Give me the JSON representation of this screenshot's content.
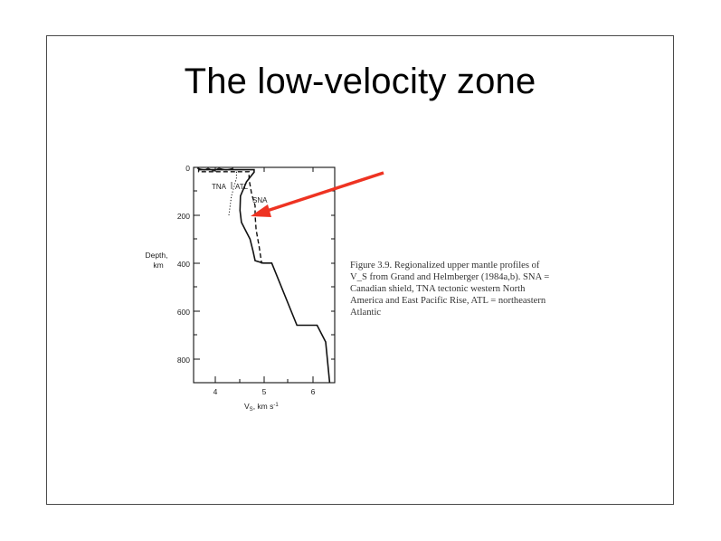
{
  "slide": {
    "title": "The low-velocity zone"
  },
  "figure": {
    "y_axis_label_line1": "Depth,",
    "y_axis_label_line2": "km",
    "x_axis_label": "V",
    "x_axis_label_sub": "S",
    "x_axis_label_unit": ", km s",
    "x_axis_label_sup": "-1",
    "y_ticks": [
      "0",
      "200",
      "400",
      "600",
      "800"
    ],
    "x_ticks": [
      "4",
      "5",
      "6"
    ],
    "profile_labels": {
      "tna": "TNA",
      "atl": "ATL",
      "sna": "SNA"
    },
    "caption_lines": [
      "Figure 3.9. Regionalized upper mantle profiles of",
      "V_S from Grand and Helmberger (1984a,b). SNA =",
      "Canadian shield, TNA      tectonic western North",
      "America and East Pacific Rise, ATL = northeastern",
      "Atlantic"
    ]
  },
  "chart_data": {
    "type": "line",
    "xlabel": "VS, km s-1",
    "ylabel": "Depth, km",
    "xlim": [
      3.5,
      6.3
    ],
    "ylim": [
      900,
      0
    ],
    "x_ticks": [
      4,
      5,
      6
    ],
    "y_ticks": [
      0,
      200,
      400,
      600,
      800
    ],
    "series": [
      {
        "name": "SNA",
        "style": "dashed",
        "points": [
          [
            3.6,
            0
          ],
          [
            3.6,
            18
          ],
          [
            4.6,
            18
          ],
          [
            4.6,
            50
          ],
          [
            4.65,
            110
          ],
          [
            4.72,
            160
          ],
          [
            4.72,
            200
          ],
          [
            4.74,
            260
          ],
          [
            4.8,
            330
          ],
          [
            4.85,
            400
          ],
          [
            5.05,
            400
          ]
        ]
      },
      {
        "name": "TNA",
        "style": "dotted",
        "points": [
          [
            4.35,
            18
          ],
          [
            4.35,
            45
          ],
          [
            4.25,
            120
          ],
          [
            4.2,
            200
          ]
        ]
      },
      {
        "name": "ATL",
        "style": "solid",
        "points": [
          [
            3.6,
            10
          ],
          [
            4.7,
            10
          ],
          [
            4.7,
            20
          ],
          [
            4.55,
            60
          ],
          [
            4.43,
            120
          ],
          [
            4.42,
            180
          ],
          [
            4.45,
            230
          ],
          [
            4.62,
            300
          ],
          [
            4.68,
            350
          ],
          [
            4.72,
            390
          ],
          [
            4.88,
            400
          ],
          [
            5.05,
            400
          ],
          [
            5.55,
            660
          ],
          [
            5.95,
            660
          ],
          [
            6.12,
            730
          ],
          [
            6.2,
            900
          ]
        ]
      }
    ]
  }
}
